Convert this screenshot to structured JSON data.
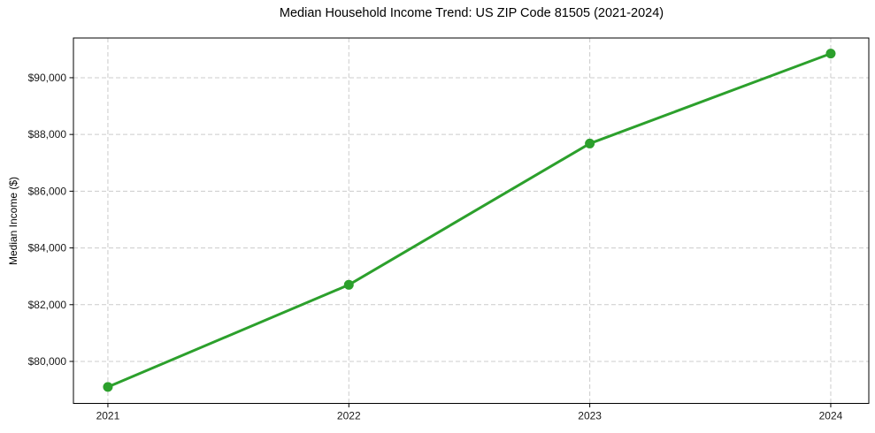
{
  "figure": {
    "background": "#ffffff"
  },
  "chart_data": {
    "type": "line",
    "title": "Median Household Income Trend: US ZIP Code 81505 (2021-2024)",
    "xlabel": "",
    "ylabel": "Median Income ($)",
    "x": [
      2021,
      2022,
      2023,
      2024
    ],
    "y": [
      79100,
      82700,
      87680,
      90850
    ],
    "xtick_labels": [
      "2021",
      "2022",
      "2023",
      "2024"
    ],
    "yticks": [
      80000,
      82000,
      84000,
      86000,
      88000,
      90000
    ],
    "ytick_labels": [
      "$80,000",
      "$82,000",
      "$84,000",
      "$86,000",
      "$88,000",
      "$90,000"
    ],
    "xlim": [
      2020.857,
      2024.158
    ],
    "ylim": [
      78520,
      91400
    ],
    "grid": true,
    "grid_style": "dashed",
    "legend_position": "none",
    "line_color": "#2ca02c",
    "marker": "circle",
    "marker_diameter": 11,
    "line_width": 3,
    "grid_color": "#cccccc",
    "grid_dash": "5 3",
    "axis_color": "#000000",
    "tick_text_color": "#191919"
  }
}
